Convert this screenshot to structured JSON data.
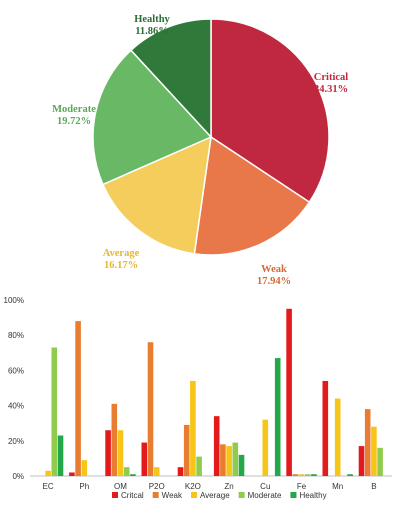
{
  "chart_data": [
    {
      "type": "pie",
      "title": "",
      "slices": [
        {
          "label": "Critical",
          "value_label": "34.31%",
          "value": 34.31,
          "color": "#c0283f",
          "label_color": "#c0283f"
        },
        {
          "label": "Weak",
          "value_label": "17.94%",
          "value": 17.94,
          "color": "#e8784a",
          "label_color": "#d56a34"
        },
        {
          "label": "Average",
          "value_label": "16.17%",
          "value": 16.17,
          "color": "#f5cd5d",
          "label_color": "#e4b830"
        },
        {
          "label": "Moderate",
          "value_label": "19.72%",
          "value": 19.72,
          "color": "#69b865",
          "label_color": "#5aa85a"
        },
        {
          "label": "Healthy",
          "value_label": "11.86%",
          "value": 11.86,
          "color": "#2f7a3a",
          "label_color": "#2a6e34"
        }
      ]
    },
    {
      "type": "bar",
      "title": "",
      "xlabel": "",
      "ylabel": "",
      "categories": [
        "EC",
        "Ph",
        "OM",
        "P2O",
        "K2O",
        "Zn",
        "Cu",
        "Fe",
        "Mn",
        "B"
      ],
      "yticks": [
        "0%",
        "20%",
        "40%",
        "60%",
        "80%",
        "100%"
      ],
      "ylim": [
        0,
        100
      ],
      "grid": false,
      "legend_position": "bottom",
      "series": [
        {
          "name": "Critcal",
          "color": "#e31a1c",
          "values": [
            0,
            2,
            26,
            19,
            5,
            34,
            0,
            95,
            54,
            17
          ]
        },
        {
          "name": "Weak",
          "color": "#e87d32",
          "values": [
            0,
            88,
            41,
            76,
            29,
            18,
            0,
            1,
            0,
            38
          ]
        },
        {
          "name": "Average",
          "color": "#f7c518",
          "values": [
            3,
            9,
            26,
            5,
            54,
            17,
            32,
            1,
            44,
            28
          ]
        },
        {
          "name": "Moderate",
          "color": "#8fcc4e",
          "values": [
            73,
            0,
            5,
            0,
            11,
            19,
            0,
            1,
            0,
            16
          ]
        },
        {
          "name": "Healthy",
          "color": "#22a84a",
          "values": [
            23,
            0,
            1,
            0,
            0,
            12,
            67,
            1,
            1,
            0
          ]
        }
      ]
    }
  ]
}
